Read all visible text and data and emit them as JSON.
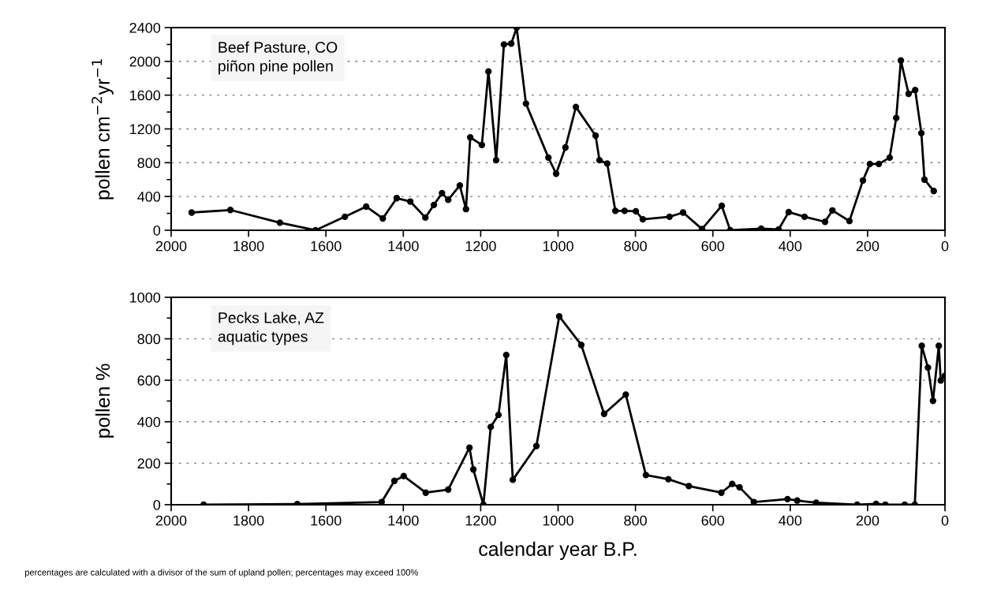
{
  "chart_data": [
    {
      "type": "line",
      "ylabel": "pollen cm$^{−2}$yr$^{−1}$",
      "annotations": [
        "Beef Pasture, CO\npiñon pine pollen"
      ],
      "xlim": [
        2000,
        0
      ],
      "xticks": [
        2000,
        1800,
        1600,
        1400,
        1200,
        1000,
        800,
        600,
        400,
        200,
        0
      ],
      "ylim": [
        0,
        2400
      ],
      "yticks": [
        0,
        400,
        800,
        1200,
        1600,
        2000,
        2400
      ],
      "grid": "y",
      "marker": "circle",
      "line_style": "solid",
      "series": [
        {
          "color": "#000000",
          "x": [
            1947,
            1847,
            1719,
            1627,
            1551,
            1496,
            1453,
            1417,
            1382,
            1343,
            1321,
            1300,
            1284,
            1254,
            1238,
            1227,
            1197,
            1180,
            1160,
            1140,
            1121,
            1107,
            1083,
            1025,
            1005,
            981,
            954,
            903,
            893,
            873,
            852,
            828,
            799,
            781,
            712,
            677,
            628,
            577,
            555,
            475,
            430,
            404,
            363,
            310,
            291,
            247,
            212,
            194,
            171,
            143,
            126,
            114,
            94,
            77,
            61,
            53,
            29
          ],
          "values": [
            210,
            240,
            90,
            0,
            160,
            280,
            140,
            380,
            340,
            150,
            300,
            440,
            360,
            530,
            250,
            1100,
            1010,
            1880,
            830,
            2200,
            2210,
            2400,
            1500,
            860,
            670,
            980,
            1460,
            1120,
            830,
            790,
            230,
            230,
            225,
            130,
            160,
            210,
            15,
            290,
            0,
            20,
            10,
            215,
            160,
            100,
            235,
            110,
            590,
            785,
            785,
            860,
            1330,
            2010,
            1615,
            1660,
            1150,
            600,
            465
          ]
        }
      ]
    },
    {
      "type": "line",
      "xlabel": "calendar year B.P.",
      "ylabel": "pollen %",
      "annotations": [
        "Pecks Lake, AZ\naquatic types",
        "percentages are calculated with a divisor of the sum of upland pollen; percentages may exceed 100%"
      ],
      "xlim": [
        2000,
        0
      ],
      "xticks": [
        2000,
        1800,
        1600,
        1400,
        1200,
        1000,
        800,
        600,
        400,
        200,
        0
      ],
      "ylim": [
        0,
        1000
      ],
      "yticks": [
        0,
        200,
        400,
        600,
        800,
        1000
      ],
      "grid": "y",
      "marker": "circle",
      "line_style": "solid",
      "series": [
        {
          "color": "#000000",
          "x": [
            1916,
            1674,
            1456,
            1423,
            1399,
            1342,
            1284,
            1229,
            1219,
            1193,
            1174,
            1154,
            1134,
            1117,
            1056,
            997,
            940,
            881,
            825,
            773,
            715,
            662,
            578,
            550,
            531,
            494,
            407,
            382,
            333,
            227,
            178,
            154,
            104,
            78,
            60,
            44,
            31,
            16,
            11,
            0
          ],
          "values": [
            0,
            3,
            13,
            115,
            138,
            58,
            73,
            275,
            170,
            0,
            375,
            433,
            722,
            120,
            283,
            908,
            770,
            438,
            531,
            143,
            123,
            90,
            58,
            100,
            84,
            13,
            27,
            20,
            10,
            0,
            4,
            0,
            0,
            0,
            766,
            661,
            501,
            766,
            599,
            622
          ]
        }
      ]
    }
  ]
}
